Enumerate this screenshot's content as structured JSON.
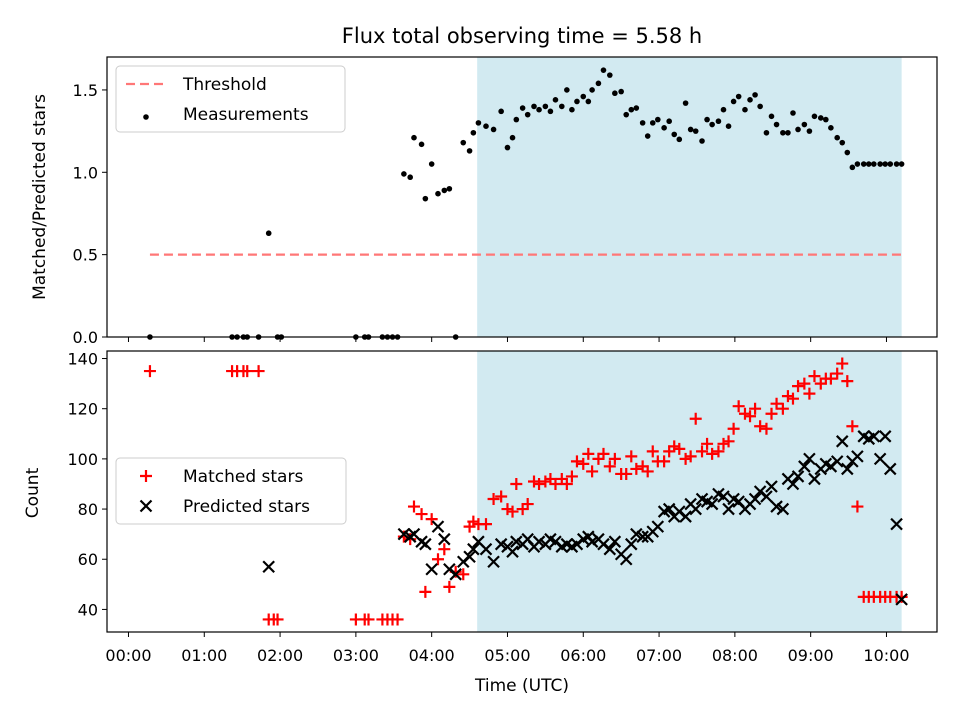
{
  "chart_data": [
    {
      "type": "scatter",
      "title": "Flux total observing time = 5.58 h",
      "ylabel": "Matched/Predicted stars",
      "xlabel": "",
      "xlim": [
        "-00:17",
        "10:40"
      ],
      "ylim": [
        0,
        1.7
      ],
      "yticks": [
        "0.0",
        "0.5",
        "1.0",
        "1.5"
      ],
      "shaded_span": [
        "04:36",
        "10:12"
      ],
      "shade_color": "#add8e6",
      "legend": {
        "placement": "top-left",
        "entries": [
          "Threshold",
          "Measurements"
        ]
      },
      "series": [
        {
          "name": "Threshold",
          "kind": "dashed-line",
          "color": "#ff7777",
          "x": [
            "00:17",
            "10:12"
          ],
          "y": [
            0.5,
            0.5
          ]
        },
        {
          "name": "Measurements",
          "kind": "dots",
          "color": "#000000",
          "x": [
            "00:17",
            "01:22",
            "01:26",
            "01:31",
            "01:34",
            "01:43",
            "01:51",
            "01:58",
            "02:01",
            "03:00",
            "03:07",
            "03:10",
            "03:21",
            "03:25",
            "03:29",
            "03:33",
            "03:38",
            "03:43",
            "03:46",
            "03:52",
            "03:55",
            "04:00",
            "04:05",
            "04:10",
            "04:14",
            "04:19",
            "04:25",
            "04:30",
            "04:33",
            "04:37",
            "04:43",
            "04:49",
            "04:55",
            "05:00",
            "05:04",
            "05:07",
            "05:12",
            "05:16",
            "05:21",
            "05:25",
            "05:30",
            "05:34",
            "05:38",
            "05:43",
            "05:47",
            "05:51",
            "05:55",
            "06:00",
            "06:04",
            "06:07",
            "06:12",
            "06:16",
            "06:21",
            "06:25",
            "06:30",
            "06:34",
            "06:38",
            "06:42",
            "06:47",
            "06:51",
            "06:55",
            "06:59",
            "07:04",
            "07:08",
            "07:12",
            "07:16",
            "07:21",
            "07:25",
            "07:29",
            "07:34",
            "07:38",
            "07:42",
            "07:47",
            "07:51",
            "07:55",
            "07:59",
            "08:03",
            "08:08",
            "08:12",
            "08:16",
            "08:20",
            "08:25",
            "08:29",
            "08:33",
            "08:38",
            "08:42",
            "08:46",
            "08:50",
            "08:55",
            "08:59",
            "09:03",
            "09:08",
            "09:12",
            "09:16",
            "09:21",
            "09:25",
            "09:29",
            "09:33",
            "09:37",
            "09:42",
            "09:46",
            "09:50",
            "09:55",
            "09:59",
            "10:03",
            "10:08",
            "10:12"
          ],
          "y": [
            0.0,
            0.0,
            0.0,
            0.0,
            0.0,
            0.0,
            0.63,
            0.0,
            0.0,
            0.0,
            0.0,
            0.0,
            0.0,
            0.0,
            0.0,
            0.0,
            0.99,
            0.97,
            1.21,
            1.17,
            0.84,
            1.05,
            0.87,
            0.89,
            0.9,
            0.0,
            1.18,
            1.13,
            1.24,
            1.3,
            1.28,
            1.26,
            1.37,
            1.15,
            1.21,
            1.32,
            1.39,
            1.35,
            1.4,
            1.38,
            1.4,
            1.37,
            1.44,
            1.4,
            1.5,
            1.38,
            1.43,
            1.46,
            1.43,
            1.5,
            1.54,
            1.62,
            1.59,
            1.48,
            1.49,
            1.35,
            1.38,
            1.39,
            1.3,
            1.22,
            1.3,
            1.32,
            1.27,
            1.31,
            1.23,
            1.2,
            1.42,
            1.26,
            1.25,
            1.19,
            1.32,
            1.29,
            1.31,
            1.38,
            1.28,
            1.43,
            1.46,
            1.38,
            1.44,
            1.47,
            1.4,
            1.24,
            1.34,
            1.29,
            1.24,
            1.24,
            1.36,
            1.26,
            1.29,
            1.25,
            1.34,
            1.33,
            1.32,
            1.27,
            1.21,
            1.18,
            1.12,
            1.03,
            1.05,
            1.05,
            1.05,
            1.05,
            1.05,
            1.05,
            1.05,
            1.05,
            1.05
          ]
        }
      ]
    },
    {
      "type": "scatter",
      "title": "",
      "ylabel": "Count",
      "xlabel": "Time (UTC)",
      "xlim": [
        "-00:17",
        "10:40"
      ],
      "ylim": [
        31,
        143
      ],
      "yticks": [
        "40",
        "60",
        "80",
        "100",
        "120",
        "140"
      ],
      "xticks": [
        "00:00",
        "01:00",
        "02:00",
        "03:00",
        "04:00",
        "05:00",
        "06:00",
        "07:00",
        "08:00",
        "09:00",
        "10:00"
      ],
      "shaded_span": [
        "04:36",
        "10:12"
      ],
      "shade_color": "#add8e6",
      "legend": {
        "placement": "center-left",
        "entries": [
          "Matched stars",
          "Predicted stars"
        ]
      },
      "series": [
        {
          "name": "Matched stars",
          "marker": "+",
          "color": "#ff0000",
          "x": [
            "00:17",
            "01:22",
            "01:26",
            "01:31",
            "01:34",
            "01:43",
            "01:51",
            "01:55",
            "01:58",
            "03:00",
            "03:07",
            "03:10",
            "03:21",
            "03:25",
            "03:29",
            "03:33",
            "03:38",
            "03:43",
            "03:46",
            "03:52",
            "03:55",
            "04:00",
            "04:05",
            "04:10",
            "04:14",
            "04:19",
            "04:25",
            "04:30",
            "04:33",
            "04:37",
            "04:43",
            "04:49",
            "04:55",
            "05:00",
            "05:04",
            "05:07",
            "05:12",
            "05:16",
            "05:21",
            "05:25",
            "05:30",
            "05:34",
            "05:38",
            "05:43",
            "05:47",
            "05:51",
            "05:55",
            "06:00",
            "06:04",
            "06:07",
            "06:12",
            "06:16",
            "06:21",
            "06:25",
            "06:30",
            "06:34",
            "06:38",
            "06:42",
            "06:47",
            "06:51",
            "06:55",
            "06:59",
            "07:04",
            "07:08",
            "07:12",
            "07:16",
            "07:21",
            "07:25",
            "07:29",
            "07:34",
            "07:38",
            "07:42",
            "07:47",
            "07:51",
            "07:55",
            "07:59",
            "08:03",
            "08:08",
            "08:12",
            "08:16",
            "08:20",
            "08:25",
            "08:29",
            "08:33",
            "08:38",
            "08:42",
            "08:46",
            "08:50",
            "08:55",
            "08:59",
            "09:03",
            "09:08",
            "09:12",
            "09:16",
            "09:21",
            "09:25",
            "09:29",
            "09:33",
            "09:37",
            "09:42",
            "09:46",
            "09:50",
            "09:55",
            "09:59",
            "10:03",
            "10:08",
            "10:12"
          ],
          "y": [
            135,
            135,
            135,
            135,
            135,
            135,
            36,
            36,
            36,
            36,
            36,
            36,
            36,
            36,
            36,
            36,
            69,
            68,
            81,
            78,
            47,
            76,
            60,
            64,
            49,
            55,
            54,
            73,
            75,
            74,
            74,
            84,
            85,
            80,
            79,
            90,
            80,
            82,
            91,
            90,
            91,
            92,
            90,
            92,
            90,
            93,
            99,
            98,
            102,
            95,
            100,
            102,
            97,
            100,
            94,
            94,
            101,
            96,
            97,
            95,
            103,
            99,
            99,
            103,
            105,
            104,
            100,
            101,
            116,
            103,
            106,
            102,
            103,
            106,
            107,
            112,
            121,
            118,
            117,
            120,
            113,
            112,
            118,
            122,
            120,
            125,
            124,
            129,
            130,
            126,
            133,
            130,
            132,
            132,
            134,
            138,
            131,
            113,
            81,
            45,
            45,
            45,
            45,
            45,
            45,
            45,
            45
          ]
        },
        {
          "name": "Predicted stars",
          "marker": "x",
          "color": "#000000",
          "x": [
            "01:51",
            "03:38",
            "03:43",
            "03:46",
            "03:52",
            "03:55",
            "04:00",
            "04:05",
            "04:10",
            "04:14",
            "04:19",
            "04:25",
            "04:30",
            "04:33",
            "04:37",
            "04:43",
            "04:49",
            "04:55",
            "05:00",
            "05:04",
            "05:07",
            "05:12",
            "05:16",
            "05:21",
            "05:25",
            "05:30",
            "05:34",
            "05:38",
            "05:43",
            "05:47",
            "05:51",
            "05:55",
            "06:00",
            "06:04",
            "06:07",
            "06:12",
            "06:16",
            "06:21",
            "06:25",
            "06:30",
            "06:34",
            "06:38",
            "06:42",
            "06:47",
            "06:51",
            "06:55",
            "06:59",
            "07:04",
            "07:08",
            "07:12",
            "07:16",
            "07:21",
            "07:25",
            "07:29",
            "07:34",
            "07:38",
            "07:42",
            "07:47",
            "07:51",
            "07:55",
            "07:59",
            "08:03",
            "08:08",
            "08:12",
            "08:16",
            "08:20",
            "08:25",
            "08:29",
            "08:33",
            "08:38",
            "08:42",
            "08:46",
            "08:50",
            "08:55",
            "08:59",
            "09:03",
            "09:08",
            "09:12",
            "09:16",
            "09:21",
            "09:25",
            "09:29",
            "09:33",
            "09:37",
            "09:42",
            "09:46",
            "09:50",
            "09:55",
            "09:59",
            "10:03",
            "10:08",
            "10:12"
          ],
          "y": [
            57,
            70,
            69,
            70,
            67,
            66,
            56,
            73,
            68,
            56,
            54,
            59,
            61,
            64,
            67,
            64,
            59,
            66,
            65,
            63,
            67,
            66,
            68,
            65,
            67,
            66,
            68,
            67,
            65,
            66,
            65,
            66,
            68,
            69,
            67,
            68,
            66,
            64,
            67,
            62,
            60,
            66,
            70,
            69,
            69,
            71,
            73,
            79,
            80,
            77,
            79,
            77,
            82,
            80,
            84,
            83,
            82,
            86,
            85,
            80,
            84,
            83,
            80,
            82,
            84,
            87,
            85,
            89,
            81,
            80,
            92,
            90,
            93,
            97,
            100,
            92,
            96,
            98,
            97,
            99,
            107,
            96,
            99,
            101,
            109,
            108,
            109,
            100,
            109,
            96,
            74,
            44
          ]
        }
      ]
    }
  ]
}
